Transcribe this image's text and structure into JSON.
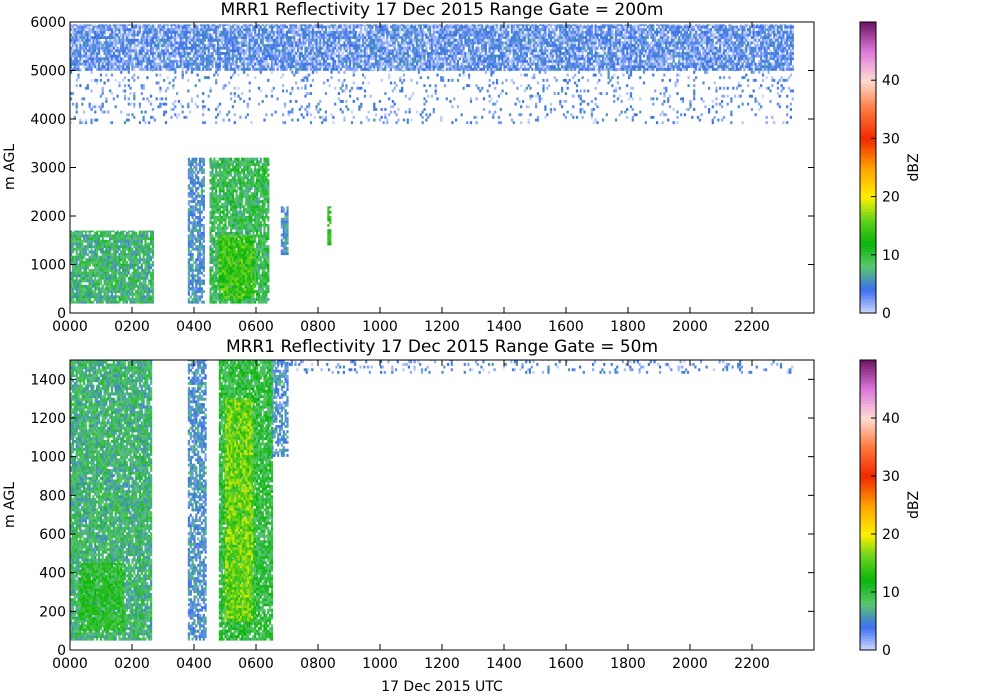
{
  "chart_data": [
    {
      "type": "heatmap",
      "title": "MRR1 Reflectivity 17 Dec 2015 Range Gate = 200m",
      "xlabel": "",
      "ylabel": "m AGL",
      "xlim": [
        0,
        2400
      ],
      "ylim": [
        0,
        6000
      ],
      "xticks": [
        "0000",
        "0200",
        "0400",
        "0600",
        "0800",
        "1000",
        "1200",
        "1400",
        "1600",
        "1800",
        "2000",
        "2200"
      ],
      "yticks": [
        "0",
        "1000",
        "2000",
        "3000",
        "4000",
        "5000",
        "6000"
      ],
      "colorbar": {
        "label": "dBZ",
        "range": [
          0,
          50
        ],
        "ticks": [
          "0",
          "10",
          "20",
          "30",
          "40"
        ]
      },
      "regions": [
        {
          "t0": 0,
          "t1": 2330,
          "h0": 5000,
          "h1": 5950,
          "dbz": 3,
          "density": 0.85
        },
        {
          "t0": 0,
          "t1": 2330,
          "h0": 3900,
          "h1": 5000,
          "dbz": 3,
          "density": 0.12
        },
        {
          "t0": 0,
          "t1": 270,
          "h0": 200,
          "h1": 1700,
          "dbz": 8,
          "density": 0.9
        },
        {
          "t0": 380,
          "t1": 430,
          "h0": 200,
          "h1": 3200,
          "dbz": 5,
          "density": 0.7
        },
        {
          "t0": 450,
          "t1": 640,
          "h0": 200,
          "h1": 3200,
          "dbz": 9,
          "density": 0.85
        },
        {
          "t0": 480,
          "t1": 590,
          "h0": 300,
          "h1": 1600,
          "dbz": 14,
          "density": 0.9
        },
        {
          "t0": 680,
          "t1": 700,
          "h0": 1200,
          "h1": 2200,
          "dbz": 5,
          "density": 0.8
        },
        {
          "t0": 830,
          "t1": 840,
          "h0": 1400,
          "h1": 2200,
          "dbz": 12,
          "density": 0.8
        }
      ]
    },
    {
      "type": "heatmap",
      "title": "MRR1 Reflectivity 17 Dec 2015 Range Gate = 50m",
      "xlabel": "17 Dec 2015 UTC",
      "ylabel": "m AGL",
      "xlim": [
        0,
        2400
      ],
      "ylim": [
        0,
        1500
      ],
      "xticks": [
        "0000",
        "0200",
        "0400",
        "0600",
        "0800",
        "1000",
        "1200",
        "1400",
        "1600",
        "1800",
        "2000",
        "2200"
      ],
      "yticks": [
        "0",
        "200",
        "400",
        "600",
        "800",
        "1000",
        "1200",
        "1400"
      ],
      "colorbar": {
        "label": "dBZ",
        "range": [
          0,
          50
        ],
        "ticks": [
          "0",
          "10",
          "20",
          "30",
          "40"
        ]
      },
      "regions": [
        {
          "t0": 0,
          "t1": 260,
          "h0": 50,
          "h1": 1500,
          "dbz": 8,
          "density": 0.9
        },
        {
          "t0": 30,
          "t1": 170,
          "h0": 100,
          "h1": 450,
          "dbz": 11,
          "density": 0.85
        },
        {
          "t0": 380,
          "t1": 440,
          "h0": 50,
          "h1": 1500,
          "dbz": 5,
          "density": 0.7
        },
        {
          "t0": 480,
          "t1": 650,
          "h0": 50,
          "h1": 1500,
          "dbz": 10,
          "density": 0.9
        },
        {
          "t0": 500,
          "t1": 590,
          "h0": 150,
          "h1": 1300,
          "dbz": 16,
          "density": 0.9
        },
        {
          "t0": 650,
          "t1": 700,
          "h0": 1000,
          "h1": 1500,
          "dbz": 5,
          "density": 0.6
        },
        {
          "t0": 700,
          "t1": 2330,
          "h0": 1430,
          "h1": 1500,
          "dbz": 3,
          "density": 0.15
        }
      ]
    }
  ]
}
